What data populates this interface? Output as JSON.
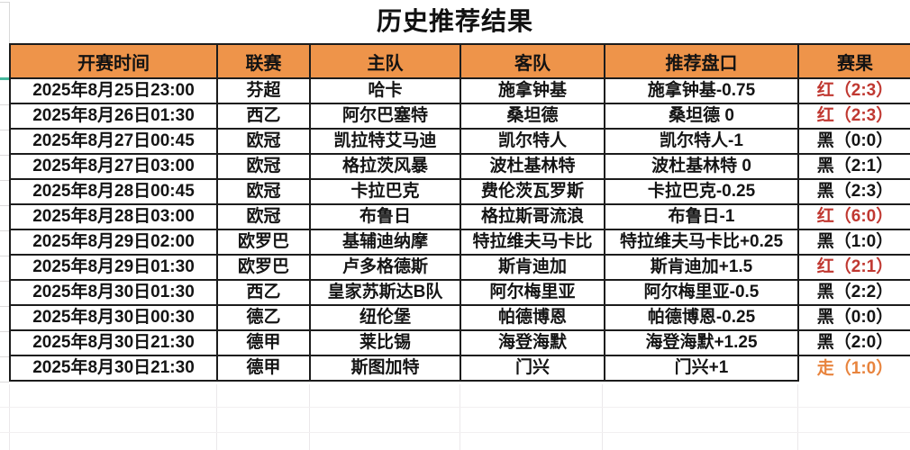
{
  "title": "历史推荐结果",
  "table": {
    "headers": [
      "开赛时间",
      "联赛",
      "主队",
      "客队",
      "推荐盘口",
      "赛果"
    ],
    "rows": [
      {
        "time": "2025年8月25日23:00",
        "league": "芬超",
        "home": "哈卡",
        "away": "施拿钟基",
        "handicap": "施拿钟基-0.75",
        "result": "红（2:3）",
        "result_type": "red"
      },
      {
        "time": "2025年8月26日01:30",
        "league": "西乙",
        "home": "阿尔巴塞特",
        "away": "桑坦德",
        "handicap": "桑坦德 0",
        "result": "红（2:3）",
        "result_type": "red"
      },
      {
        "time": "2025年8月27日00:45",
        "league": "欧冠",
        "home": "凯拉特艾马迪",
        "away": "凯尔特人",
        "handicap": "凯尔特人-1",
        "result": "黑（0:0）",
        "result_type": "black"
      },
      {
        "time": "2025年8月27日03:00",
        "league": "欧冠",
        "home": "格拉茨风暴",
        "away": "波杜基林特",
        "handicap": "波杜基林特 0",
        "result": "黑（2:1）",
        "result_type": "black"
      },
      {
        "time": "2025年8月28日00:45",
        "league": "欧冠",
        "home": "卡拉巴克",
        "away": "费伦茨瓦罗斯",
        "handicap": "卡拉巴克-0.25",
        "result": "黑（2:3）",
        "result_type": "black"
      },
      {
        "time": "2025年8月28日03:00",
        "league": "欧冠",
        "home": "布鲁日",
        "away": "格拉斯哥流浪",
        "handicap": "布鲁日-1",
        "result": "红（6:0）",
        "result_type": "red"
      },
      {
        "time": "2025年8月29日02:00",
        "league": "欧罗巴",
        "home": "基辅迪纳摩",
        "away": "特拉维夫马卡比",
        "handicap": "特拉维夫马卡比+0.25",
        "result": "黑（1:0）",
        "result_type": "black"
      },
      {
        "time": "2025年8月29日01:30",
        "league": "欧罗巴",
        "home": "卢多格德斯",
        "away": "斯肯迪加",
        "handicap": "斯肯迪加+1.5",
        "result": "红（2:1）",
        "result_type": "red"
      },
      {
        "time": "2025年8月30日01:30",
        "league": "西乙",
        "home": "皇家苏斯达B队",
        "away": "阿尔梅里亚",
        "handicap": "阿尔梅里亚-0.5",
        "result": "黑（2:2）",
        "result_type": "black"
      },
      {
        "time": "2025年8月30日00:30",
        "league": "德乙",
        "home": "纽伦堡",
        "away": "帕德博恩",
        "handicap": "帕德博恩-0.25",
        "result": "黑（0:0）",
        "result_type": "black"
      },
      {
        "time": "2025年8月30日21:30",
        "league": "德甲",
        "home": "莱比锡",
        "away": "海登海默",
        "handicap": "海登海默+1.25",
        "result": "黑（2:0）",
        "result_type": "black"
      },
      {
        "time": "2025年8月30日21:30",
        "league": "德甲",
        "home": "斯图加特",
        "away": "门兴",
        "handicap": "门兴+1",
        "result": "走（1:0）",
        "result_type": "walk"
      }
    ]
  },
  "colors": {
    "header_bg": "#EE944A",
    "red_result": "#C03831",
    "orange_result": "#E8843E",
    "text": "#141414",
    "freeze_indicator": "#45B89C"
  }
}
